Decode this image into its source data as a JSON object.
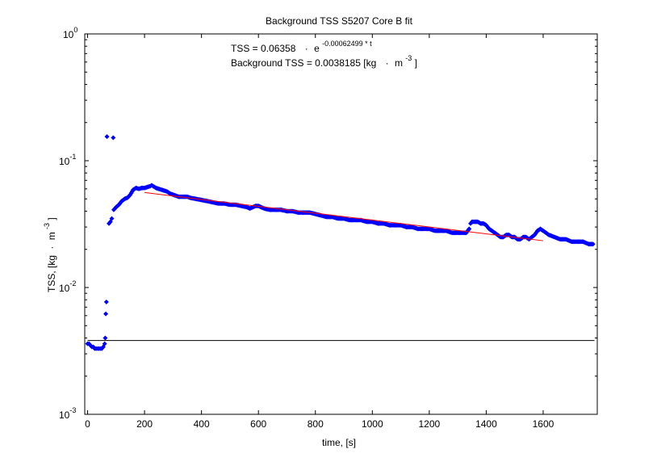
{
  "chart_data": {
    "type": "scatter",
    "title": "Background TSS S5207 Core B fit",
    "xlabel": "time, [s]",
    "ylabel": {
      "main": "TSS, [kg",
      "dot": "·",
      "unit": "m",
      "exp": "-3",
      "close": "]"
    },
    "yscale": "log",
    "xlim": [
      -10,
      1790
    ],
    "ylim": [
      0.001,
      1
    ],
    "x_ticks": [
      0,
      200,
      400,
      600,
      800,
      1000,
      1200,
      1400,
      1600
    ],
    "x_tick_labels": [
      "0",
      "200",
      "400",
      "600",
      "800",
      "1000",
      "1200",
      "1400",
      "1600"
    ],
    "y_ticks": [
      {
        "value": 0.001,
        "base": "10",
        "exp": "-3"
      },
      {
        "value": 0.01,
        "base": "10",
        "exp": "-2"
      },
      {
        "value": 0.1,
        "base": "10",
        "exp": "-1"
      },
      {
        "value": 1,
        "base": "10",
        "exp": "0"
      }
    ],
    "annotations": {
      "fit_equation": {
        "lhs": "TSS = 0.06358",
        "dot": "·",
        "base": "e",
        "exp": "-0.00062499 * t"
      },
      "background": {
        "text": "Background TSS = 0.0038185 [kg",
        "dot": "·",
        "unit": "m",
        "exp": "-3",
        "close": "]"
      }
    },
    "grid": false,
    "legend": "none",
    "colors": {
      "data": "#0000ff",
      "fit": "#ff0000",
      "background": "#000000",
      "axes": "#000000"
    },
    "series": [
      {
        "values": [
          [
            0,
            0.0036
          ],
          [
            5,
            0.0036
          ],
          [
            10,
            0.0035
          ],
          [
            15,
            0.0034
          ],
          [
            20,
            0.0034
          ],
          [
            25,
            0.0033
          ],
          [
            30,
            0.0033
          ],
          [
            35,
            0.0033
          ],
          [
            40,
            0.0033
          ],
          [
            45,
            0.0033
          ],
          [
            50,
            0.0033
          ],
          [
            55,
            0.0034
          ],
          [
            60,
            0.0036
          ],
          [
            62,
            0.004
          ],
          [
            64,
            0.0062
          ],
          [
            66,
            0.0077
          ],
          [
            68,
            0.155
          ],
          [
            75,
            0.032
          ],
          [
            80,
            0.033
          ],
          [
            85,
            0.035
          ],
          [
            90,
            0.152
          ],
          [
            92,
            0.041
          ],
          [
            100,
            0.043
          ],
          [
            110,
            0.045
          ],
          [
            120,
            0.048
          ],
          [
            130,
            0.05
          ],
          [
            140,
            0.051
          ],
          [
            150,
            0.054
          ],
          [
            160,
            0.059
          ],
          [
            170,
            0.061
          ],
          [
            180,
            0.06
          ],
          [
            190,
            0.061
          ],
          [
            200,
            0.061
          ],
          [
            210,
            0.062
          ],
          [
            220,
            0.063
          ],
          [
            225,
            0.064
          ],
          [
            230,
            0.063
          ],
          [
            240,
            0.061
          ],
          [
            250,
            0.06
          ],
          [
            260,
            0.059
          ],
          [
            270,
            0.058
          ],
          [
            280,
            0.057
          ],
          [
            290,
            0.055
          ],
          [
            300,
            0.054
          ],
          [
            310,
            0.053
          ],
          [
            320,
            0.052
          ],
          [
            330,
            0.052
          ],
          [
            340,
            0.052
          ],
          [
            350,
            0.052
          ],
          [
            360,
            0.051
          ],
          [
            380,
            0.05
          ],
          [
            400,
            0.049
          ],
          [
            420,
            0.048
          ],
          [
            440,
            0.047
          ],
          [
            460,
            0.046
          ],
          [
            480,
            0.046
          ],
          [
            500,
            0.045
          ],
          [
            520,
            0.045
          ],
          [
            540,
            0.044
          ],
          [
            560,
            0.043
          ],
          [
            570,
            0.042
          ],
          [
            580,
            0.043
          ],
          [
            590,
            0.044
          ],
          [
            600,
            0.044
          ],
          [
            620,
            0.042
          ],
          [
            640,
            0.041
          ],
          [
            660,
            0.041
          ],
          [
            680,
            0.041
          ],
          [
            700,
            0.04
          ],
          [
            720,
            0.04
          ],
          [
            740,
            0.039
          ],
          [
            760,
            0.039
          ],
          [
            780,
            0.039
          ],
          [
            800,
            0.038
          ],
          [
            820,
            0.037
          ],
          [
            840,
            0.036
          ],
          [
            860,
            0.036
          ],
          [
            880,
            0.035
          ],
          [
            900,
            0.035
          ],
          [
            920,
            0.034
          ],
          [
            940,
            0.034
          ],
          [
            960,
            0.034
          ],
          [
            980,
            0.033
          ],
          [
            1000,
            0.033
          ],
          [
            1020,
            0.032
          ],
          [
            1040,
            0.032
          ],
          [
            1060,
            0.031
          ],
          [
            1080,
            0.031
          ],
          [
            1100,
            0.031
          ],
          [
            1120,
            0.03
          ],
          [
            1140,
            0.03
          ],
          [
            1160,
            0.029
          ],
          [
            1180,
            0.029
          ],
          [
            1200,
            0.029
          ],
          [
            1220,
            0.028
          ],
          [
            1240,
            0.028
          ],
          [
            1260,
            0.028
          ],
          [
            1280,
            0.027
          ],
          [
            1300,
            0.027
          ],
          [
            1320,
            0.027
          ],
          [
            1330,
            0.027
          ],
          [
            1340,
            0.029
          ],
          [
            1345,
            0.032
          ],
          [
            1350,
            0.033
          ],
          [
            1360,
            0.033
          ],
          [
            1370,
            0.033
          ],
          [
            1380,
            0.032
          ],
          [
            1390,
            0.032
          ],
          [
            1400,
            0.031
          ],
          [
            1410,
            0.029
          ],
          [
            1420,
            0.028
          ],
          [
            1430,
            0.027
          ],
          [
            1440,
            0.026
          ],
          [
            1450,
            0.025
          ],
          [
            1460,
            0.025
          ],
          [
            1470,
            0.026
          ],
          [
            1480,
            0.026
          ],
          [
            1490,
            0.025
          ],
          [
            1500,
            0.025
          ],
          [
            1510,
            0.024
          ],
          [
            1520,
            0.024
          ],
          [
            1530,
            0.025
          ],
          [
            1540,
            0.025
          ],
          [
            1550,
            0.024
          ],
          [
            1560,
            0.025
          ],
          [
            1570,
            0.026
          ],
          [
            1580,
            0.028
          ],
          [
            1590,
            0.029
          ],
          [
            1600,
            0.028
          ],
          [
            1610,
            0.027
          ],
          [
            1620,
            0.026
          ],
          [
            1640,
            0.025
          ],
          [
            1660,
            0.024
          ],
          [
            1680,
            0.024
          ],
          [
            1700,
            0.023
          ],
          [
            1720,
            0.023
          ],
          [
            1740,
            0.023
          ],
          [
            1760,
            0.022
          ],
          [
            1775,
            0.022
          ]
        ]
      }
    ],
    "fit": {
      "a": 0.06358,
      "k": -0.00062499,
      "x_range": [
        200,
        1600
      ]
    },
    "background_level": 0.0038185
  }
}
